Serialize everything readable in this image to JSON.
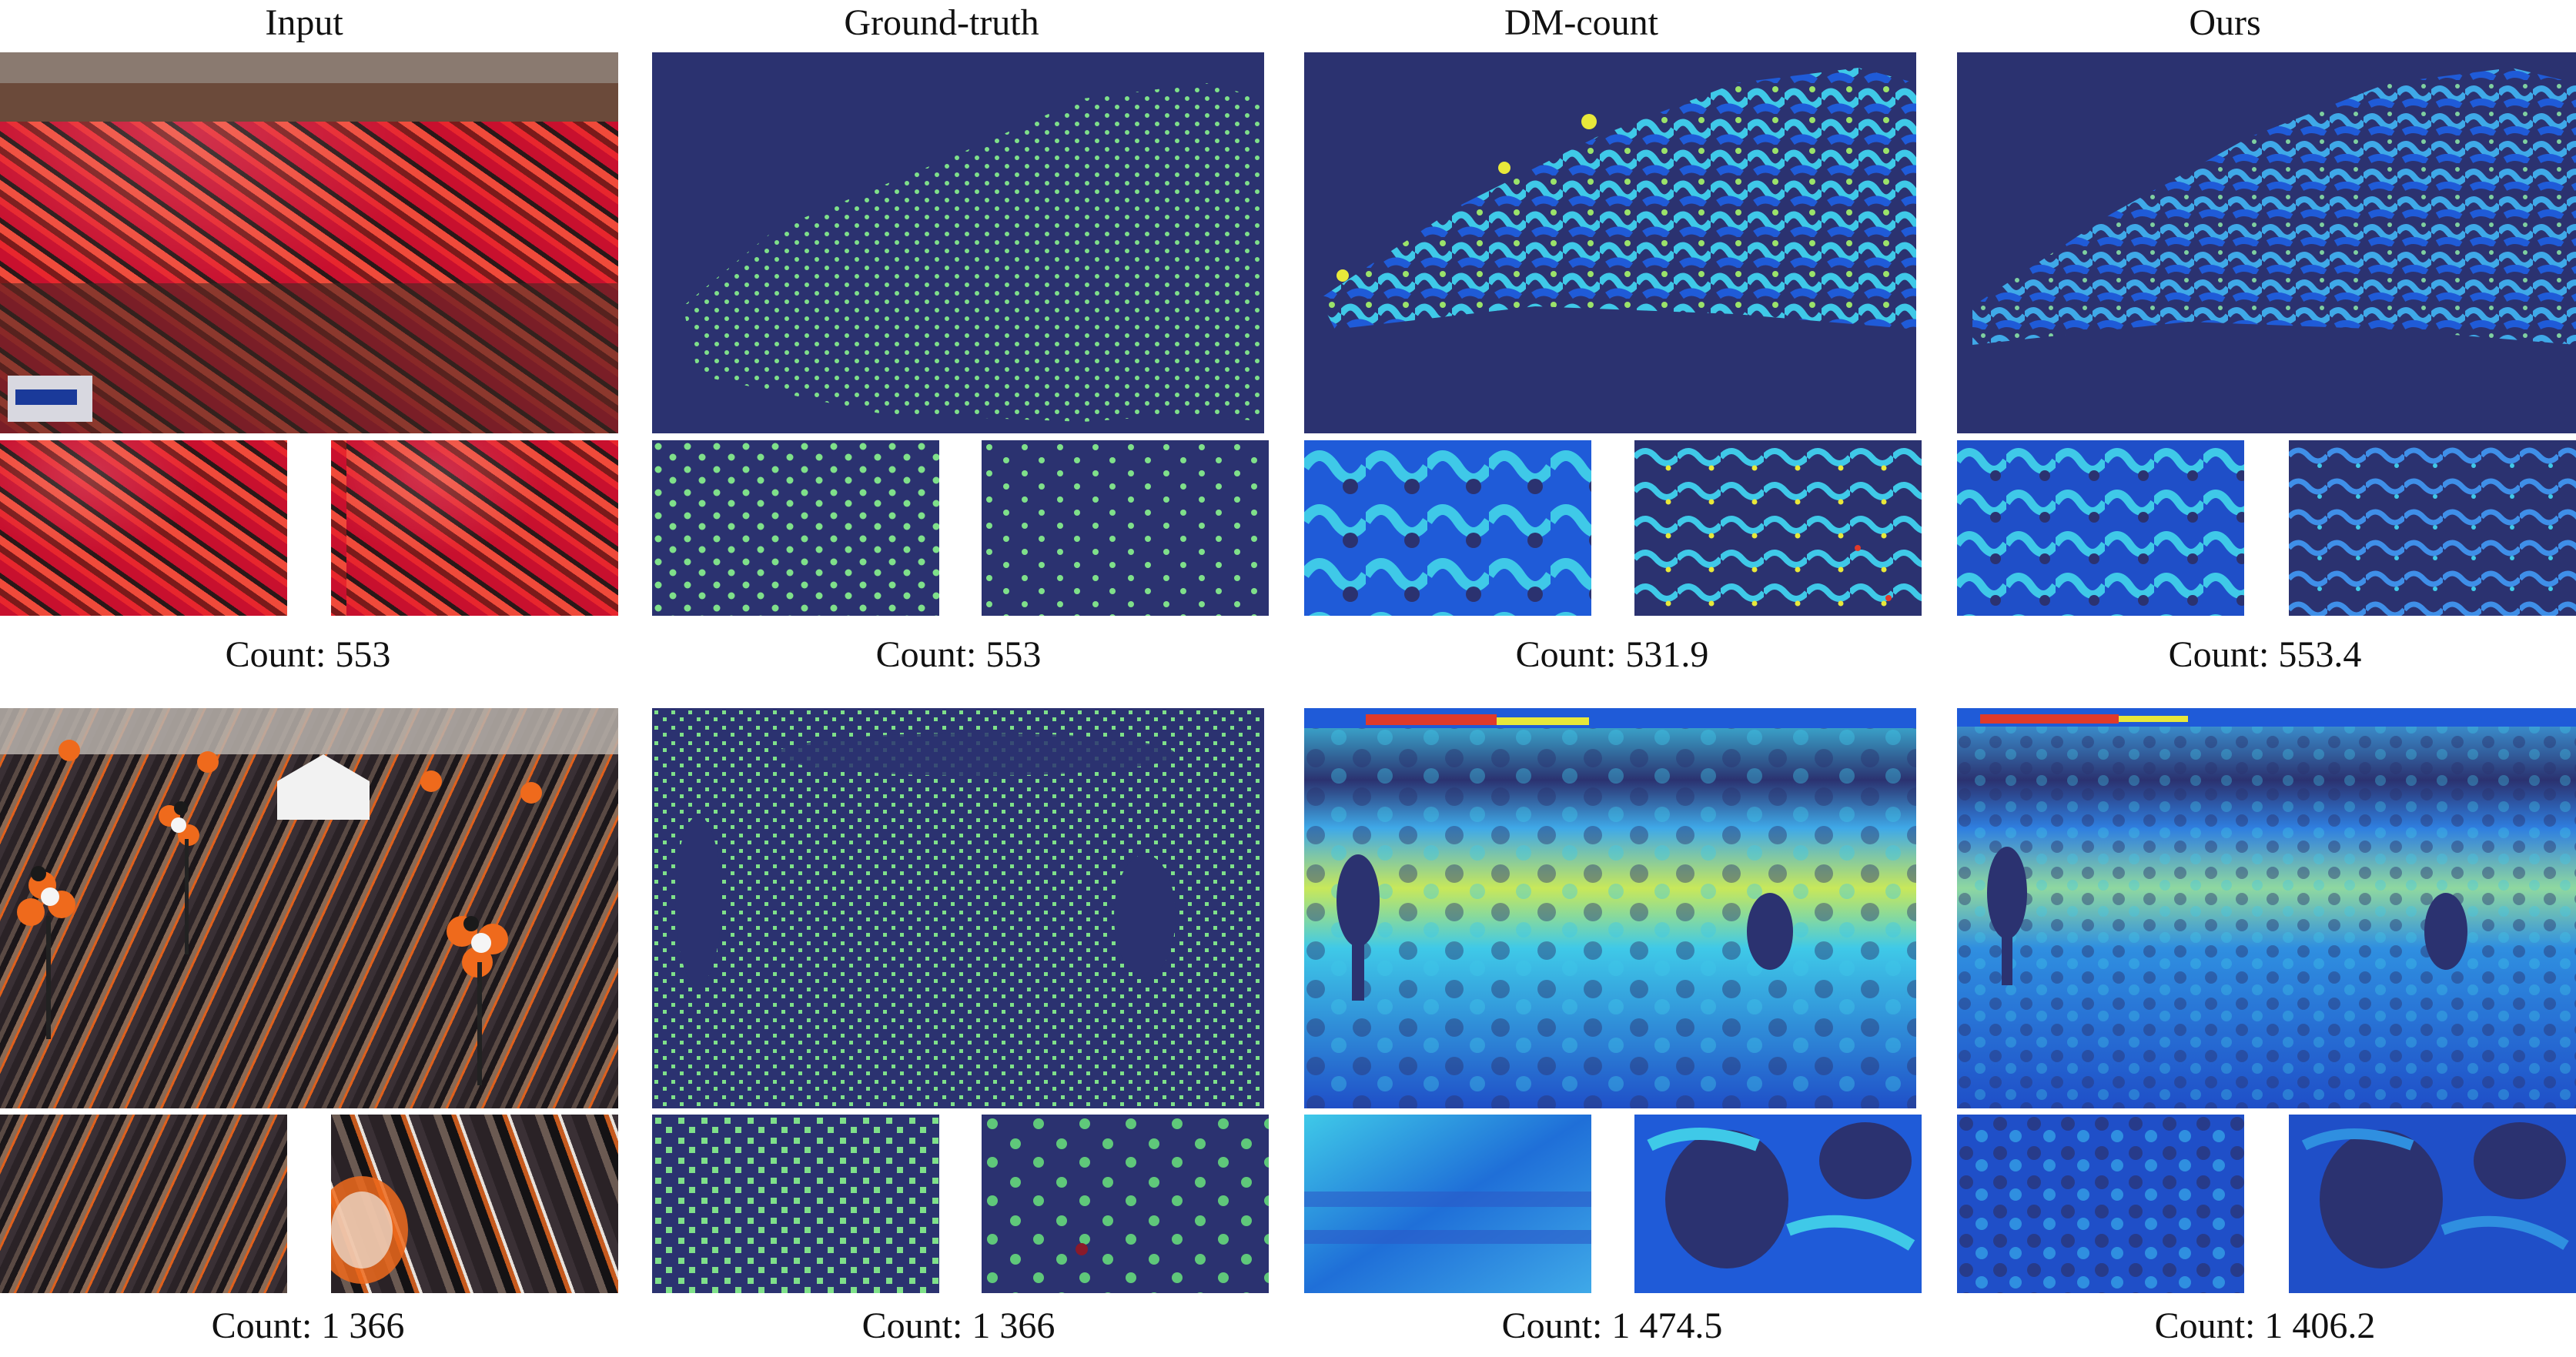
{
  "headers": [
    "Input",
    "Ground-truth",
    "DM-count",
    "Ours"
  ],
  "rows": [
    {
      "counts": [
        "Count: 553",
        "Count: 553",
        "Count: 531.9",
        "Count: 553.4"
      ]
    },
    {
      "counts": [
        "Count: 1 366",
        "Count: 1 366",
        "Count: 1 474.5",
        "Count: 1 406.2"
      ]
    }
  ],
  "colors": {
    "density_background": "#2b3270",
    "gt_dot": "#7fe08a",
    "heat_blue": "#1f5bd8",
    "heat_cyan": "#3fc9e8",
    "heat_yellow": "#e8e83a",
    "heat_red": "#e03a2a",
    "crowd_red": "#d9202a",
    "crowd_orange": "#ef6a1c"
  }
}
